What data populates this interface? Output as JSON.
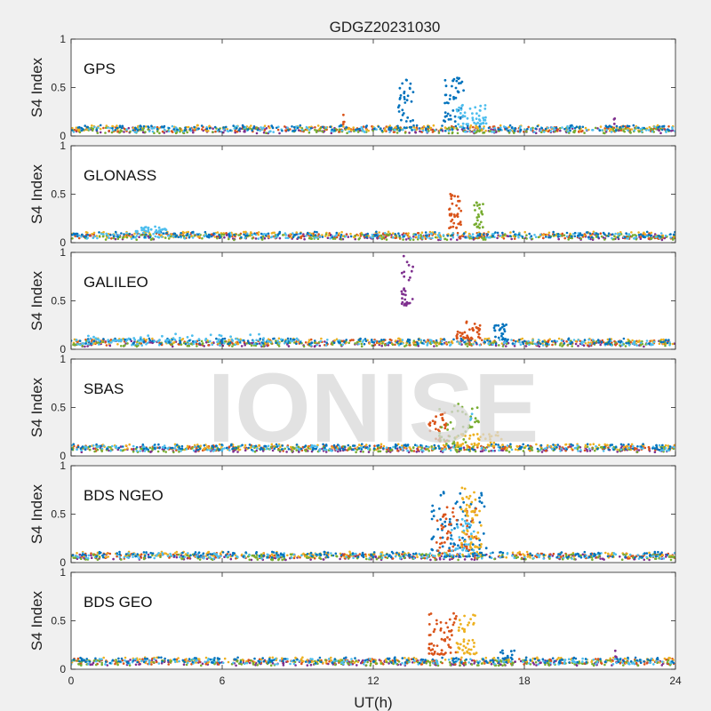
{
  "figure": {
    "title": "GDGZ20231030",
    "watermark": "IONISE",
    "background": "#f0f0f0",
    "axes_background": "#ffffff"
  },
  "chart_data": {
    "type": "scatter",
    "title": "GDGZ20231030",
    "xlabel": "UT(h)",
    "ylabel": "S4 Index",
    "xlim": [
      0,
      24
    ],
    "ylim": [
      0,
      1
    ],
    "xticks": [
      "0",
      "6",
      "12",
      "18",
      "24"
    ],
    "xtick_values": [
      0,
      6,
      12,
      18,
      24
    ],
    "yticks": [
      "0",
      "0.5",
      "1"
    ],
    "ytick_values": [
      0,
      0.5,
      1
    ],
    "grid": false,
    "series_colors": [
      "#0072BD",
      "#D95319",
      "#EDB120",
      "#7E2F8E",
      "#77AC30",
      "#4DBEEE",
      "#A2142F"
    ],
    "panels": [
      {
        "label": "GPS",
        "baseline": 0.07,
        "events": [
          {
            "x": [
              13.0,
              13.6
            ],
            "y": [
              0.15,
              0.58
            ],
            "color": 0,
            "n": 30
          },
          {
            "x": [
              14.8,
              15.6
            ],
            "y": [
              0.15,
              0.6
            ],
            "color": 0,
            "n": 45
          },
          {
            "x": [
              15.3,
              16.5
            ],
            "y": [
              0.12,
              0.33
            ],
            "color": 5,
            "n": 45
          },
          {
            "x": [
              10.8,
              10.9
            ],
            "y": [
              0.12,
              0.22
            ],
            "color": 1,
            "n": 4
          },
          {
            "x": [
              21.5,
              21.6
            ],
            "y": [
              0.12,
              0.2
            ],
            "color": 3,
            "n": 3
          }
        ]
      },
      {
        "label": "GLONASS",
        "baseline": 0.07,
        "events": [
          {
            "x": [
              15.0,
              15.5
            ],
            "y": [
              0.15,
              0.55
            ],
            "color": 1,
            "n": 35
          },
          {
            "x": [
              16.0,
              16.4
            ],
            "y": [
              0.15,
              0.42
            ],
            "color": 4,
            "n": 25
          },
          {
            "x": [
              2.5,
              3.8
            ],
            "y": [
              0.1,
              0.17
            ],
            "color": 5,
            "n": 30
          }
        ]
      },
      {
        "label": "GALILEO",
        "baseline": 0.07,
        "events": [
          {
            "x": [
              13.1,
              13.6
            ],
            "y": [
              0.45,
              0.97
            ],
            "color": 3,
            "n": 30
          },
          {
            "x": [
              15.3,
              16.3
            ],
            "y": [
              0.1,
              0.32
            ],
            "color": 1,
            "n": 40
          },
          {
            "x": [
              16.8,
              17.3
            ],
            "y": [
              0.1,
              0.26
            ],
            "color": 0,
            "n": 25
          },
          {
            "x": [
              0.5,
              9.0
            ],
            "y": [
              0.08,
              0.16
            ],
            "color": 5,
            "n": 60
          }
        ]
      },
      {
        "label": "SBAS",
        "baseline": 0.08,
        "events": [
          {
            "x": [
              14.2,
              15.0
            ],
            "y": [
              0.15,
              0.45
            ],
            "color": 1,
            "n": 30
          },
          {
            "x": [
              14.6,
              16.2
            ],
            "y": [
              0.12,
              0.55
            ],
            "color": 4,
            "n": 45
          },
          {
            "x": [
              15.3,
              17.2
            ],
            "y": [
              0.1,
              0.25
            ],
            "color": 2,
            "n": 40
          },
          {
            "x": [
              15.8,
              16.0
            ],
            "y": [
              0.35,
              0.45
            ],
            "color": 5,
            "n": 4
          }
        ]
      },
      {
        "label": "BDS NGEO",
        "baseline": 0.07,
        "events": [
          {
            "x": [
              14.3,
              16.5
            ],
            "y": [
              0.12,
              0.75
            ],
            "color": 0,
            "n": 70
          },
          {
            "x": [
              14.5,
              16.2
            ],
            "y": [
              0.12,
              0.6
            ],
            "color": 1,
            "n": 55
          },
          {
            "x": [
              15.5,
              16.3
            ],
            "y": [
              0.15,
              0.8
            ],
            "color": 2,
            "n": 55
          },
          {
            "x": [
              15.0,
              16.0
            ],
            "y": [
              0.12,
              0.45
            ],
            "color": 5,
            "n": 30
          }
        ]
      },
      {
        "label": "BDS GEO",
        "baseline": 0.08,
        "events": [
          {
            "x": [
              14.2,
              15.3
            ],
            "y": [
              0.15,
              0.58
            ],
            "color": 1,
            "n": 60
          },
          {
            "x": [
              15.3,
              16.1
            ],
            "y": [
              0.15,
              0.58
            ],
            "color": 2,
            "n": 45
          },
          {
            "x": [
              17.0,
              17.6
            ],
            "y": [
              0.1,
              0.2
            ],
            "color": 0,
            "n": 12
          },
          {
            "x": [
              21.6,
              21.7
            ],
            "y": [
              0.12,
              0.2
            ],
            "color": 3,
            "n": 3
          }
        ]
      }
    ]
  }
}
